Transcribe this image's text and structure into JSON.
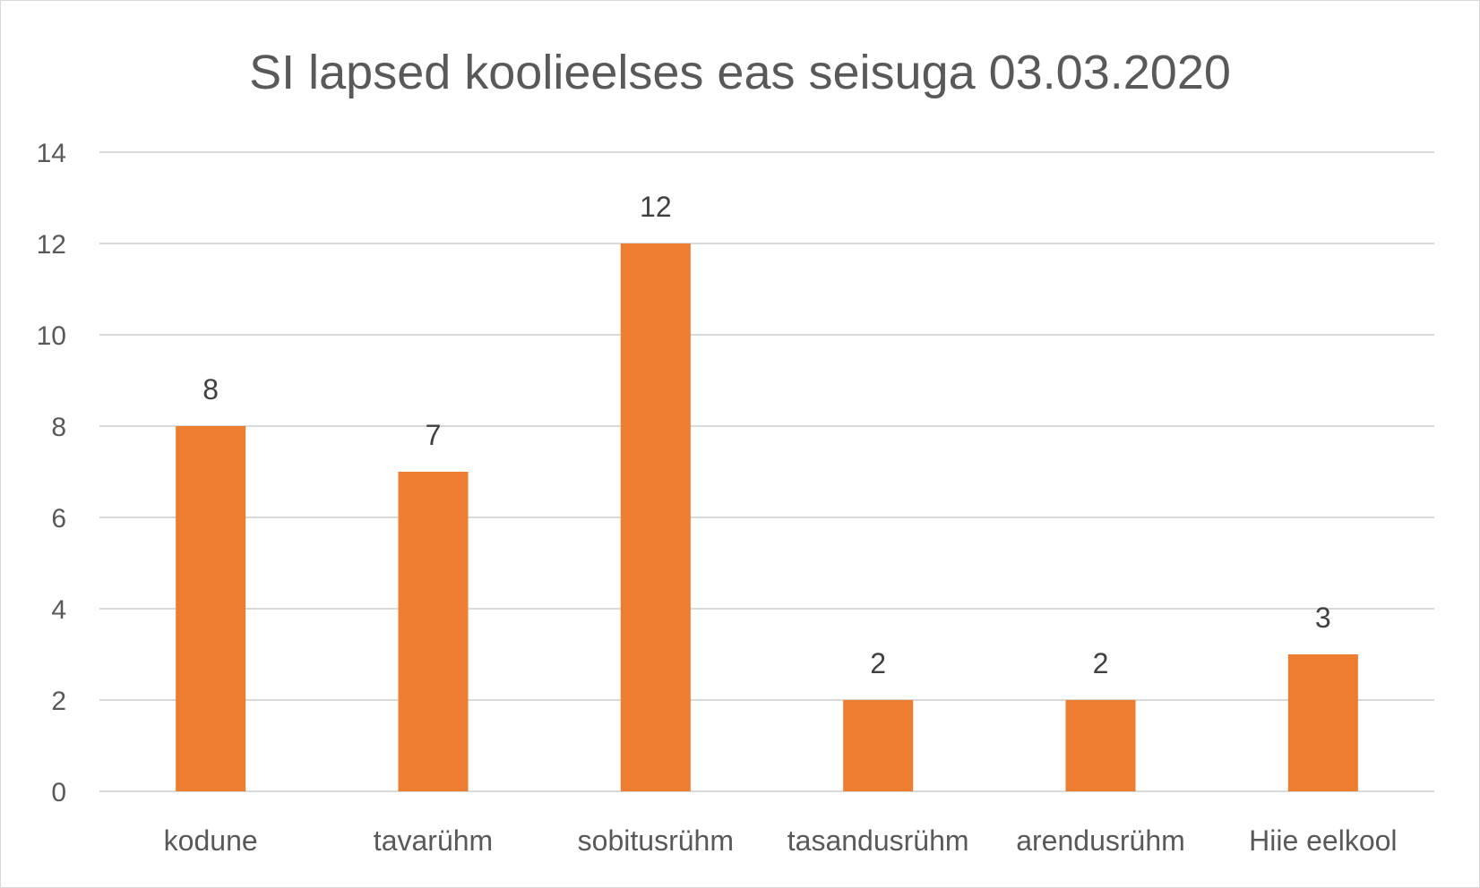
{
  "chart_data": {
    "type": "bar",
    "title": "SI lapsed koolieelses eas seisuga 03.03.2020",
    "categories": [
      "kodune",
      "tavarühm",
      "sobitusrühm",
      "tasandusrühm",
      "arendusrühm",
      "Hiie eelkool"
    ],
    "values": [
      8,
      7,
      12,
      2,
      2,
      3
    ],
    "ylim": [
      0,
      14
    ],
    "yticks": [
      0,
      2,
      4,
      6,
      8,
      10,
      12,
      14
    ],
    "grid": true,
    "data_labels": true,
    "legend": "none",
    "bar_color": "#ed7d31",
    "grid_color": "#d9d9d9"
  }
}
